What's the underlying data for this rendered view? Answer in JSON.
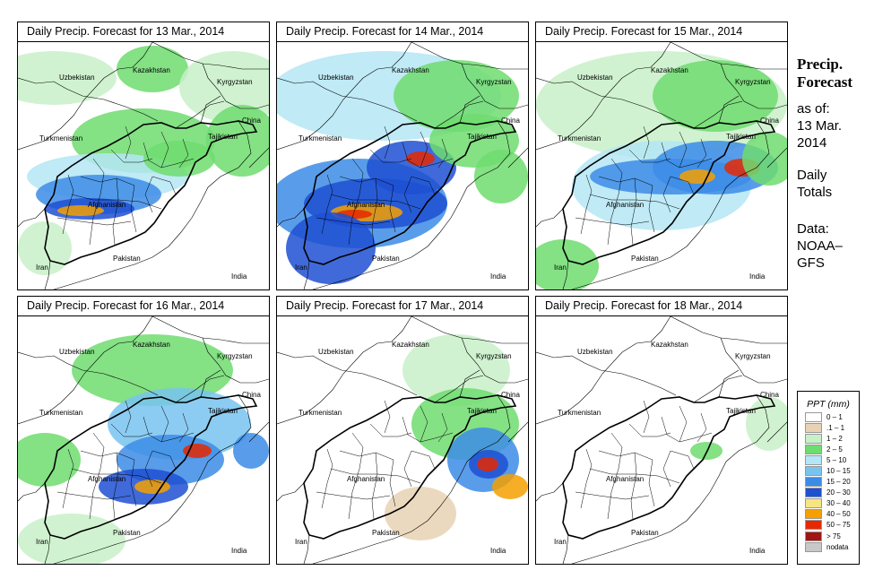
{
  "panels": [
    {
      "title": "Daily Precip. Forecast for  13 Mar., 2014"
    },
    {
      "title": "Daily Precip. Forecast for  14 Mar., 2014"
    },
    {
      "title": "Daily Precip. Forecast for  15 Mar., 2014"
    },
    {
      "title": "Daily Precip. Forecast for  16 Mar., 2014"
    },
    {
      "title": "Daily Precip. Forecast for  17 Mar., 2014"
    },
    {
      "title": "Daily Precip. Forecast for  18 Mar., 2014"
    }
  ],
  "map_labels": {
    "uzbekistan": "Uzbekistan",
    "kazakhstan": "Kazakhstan",
    "kyrgyzstan": "Kyrgyzstan",
    "china": "China",
    "tajikistan": "Tajikistan",
    "turkmenistan": "Turkmenistan",
    "afghanistan": "Afghanistan",
    "pakistan": "Pakistan",
    "iran": "Iran",
    "india": "India"
  },
  "sidebar": {
    "title_line1": "Precip.",
    "title_line2": "Forecast",
    "asof_line1": "as of:",
    "asof_line2": "13 Mar.",
    "asof_line3": "2014",
    "daily_line1": "Daily",
    "daily_line2": "Totals",
    "data_line1": "Data:",
    "data_line2": "NOAA–",
    "data_line3": "GFS"
  },
  "legend": {
    "title": "PPT (mm)",
    "items": [
      {
        "label": "0 – 1",
        "color": "#ffffff"
      },
      {
        "label": ".1 – 1",
        "color": "#e8d2b4"
      },
      {
        "label": "1 – 2",
        "color": "#c8f0c8"
      },
      {
        "label": "2 – 5",
        "color": "#6edc6e"
      },
      {
        "label": "5 – 10",
        "color": "#b4e6f5"
      },
      {
        "label": "10 – 15",
        "color": "#78c3f0"
      },
      {
        "label": "15 – 20",
        "color": "#3c8ce6"
      },
      {
        "label": "20 – 30",
        "color": "#1e50d2"
      },
      {
        "label": "30 – 40",
        "color": "#f5e682"
      },
      {
        "label": "40 – 50",
        "color": "#f5a000"
      },
      {
        "label": "50 – 75",
        "color": "#e62800"
      },
      {
        "label": "> 75",
        "color": "#a01414"
      },
      {
        "label": "nodata",
        "color": "#c8c8c8"
      }
    ]
  }
}
